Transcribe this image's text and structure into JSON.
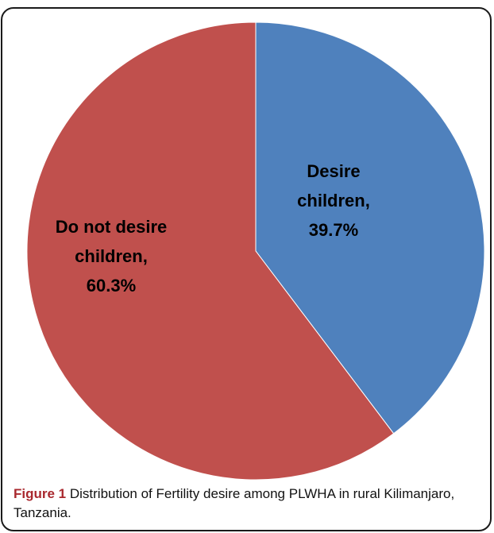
{
  "chart_data": {
    "type": "pie",
    "slices": [
      {
        "label_lines": [
          "Desire",
          "children,",
          "39.7%"
        ],
        "value": 39.7,
        "color": "#4f81bd"
      },
      {
        "label_lines": [
          "Do not desire",
          "children,",
          "60.3%"
        ],
        "value": 60.3,
        "color": "#c0504d"
      }
    ]
  },
  "caption": {
    "number": "Figure 1",
    "text": " Distribution of Fertility desire among PLWHA in rural Kilimanjaro, Tanzania."
  }
}
